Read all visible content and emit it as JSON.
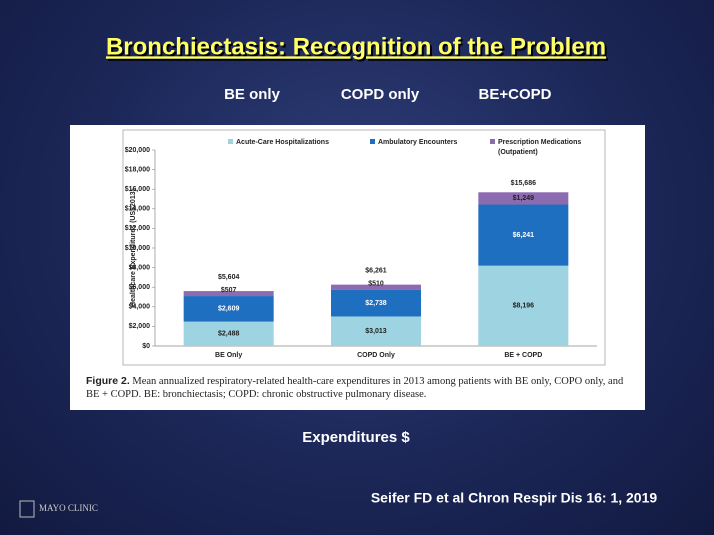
{
  "slide": {
    "title": "Bronchiectasis: Recognition of the Problem",
    "headers": [
      "BE only",
      "COPD only",
      "BE+COPD"
    ],
    "caption_label": "Figure 2.",
    "caption": "Mean annualized respiratory-related health-care expenditures in 2013 among patients with BE only, COPO only, and BE + COPD. BE: bronchiectasis; COPD: chronic obstructive pulmonary disease.",
    "footer_label": "Expenditures $",
    "citation": "Seifer FD et al Chron Respir Dis 16: 1, 2019",
    "logo": "MAYO CLINIC"
  },
  "chart_data": {
    "type": "stacked_bar",
    "y_label": "Healthcare Expenditures (US$2013)",
    "categories": [
      "BE Only",
      "COPD Only",
      "BE + COPD"
    ],
    "series": [
      {
        "name": "Acute-Care Hospitalizations",
        "color": "#9ed3e2",
        "values": [
          2488,
          3013,
          8196
        ],
        "value_labels": [
          "$2,488",
          "$3,013",
          "$8,196"
        ]
      },
      {
        "name": "Ambulatory Encounters",
        "color": "#1f6fc1",
        "values": [
          2609,
          2738,
          6241
        ],
        "value_labels": [
          "$2,609",
          "$2,738",
          "$6,241"
        ]
      },
      {
        "name": "Prescription Medications (Outpatient)",
        "color": "#8d6bb0",
        "values": [
          507,
          510,
          1249
        ],
        "value_labels": [
          "$507",
          "$510",
          "$1,249"
        ]
      }
    ],
    "totals": [
      5604,
      6261,
      15686
    ],
    "total_labels": [
      "$5,604",
      "$6,261",
      "$15,686"
    ],
    "ylim": [
      0,
      20000
    ],
    "yticks": [
      {
        "value": 0,
        "label": "$0"
      },
      {
        "value": 2000,
        "label": "$2,000"
      },
      {
        "value": 4000,
        "label": "$4,000"
      },
      {
        "value": 6000,
        "label": "$6,000"
      },
      {
        "value": 8000,
        "label": "$8,000"
      },
      {
        "value": 10000,
        "label": "$10,000"
      },
      {
        "value": 12000,
        "label": "$12,000"
      },
      {
        "value": 14000,
        "label": "$14,000"
      },
      {
        "value": 16000,
        "label": "$16,000"
      },
      {
        "value": 18000,
        "label": "$18,000"
      },
      {
        "value": 20000,
        "label": "$20,000"
      }
    ]
  }
}
